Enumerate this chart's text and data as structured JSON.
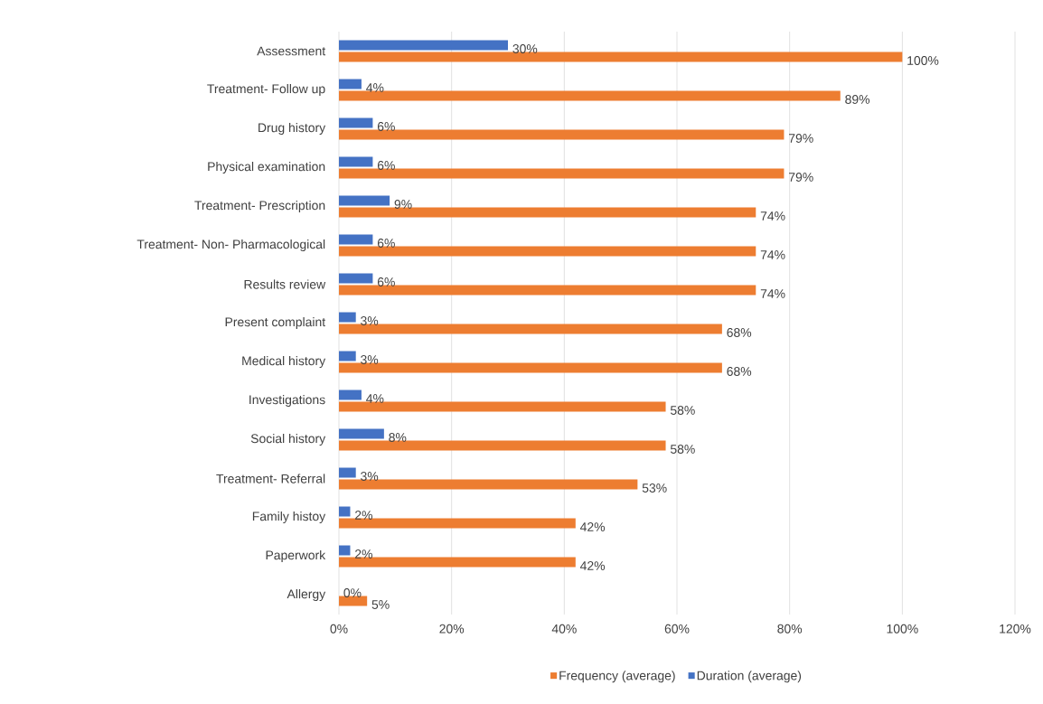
{
  "chart_data": {
    "type": "bar",
    "orientation": "horizontal",
    "categories": [
      "Assessment",
      "Treatment- Follow up",
      "Drug history",
      "Physical examination",
      "Treatment- Prescription",
      "Treatment- Non- Pharmacological",
      "Results review",
      "Present complaint",
      "Medical history",
      "Investigations",
      "Social history",
      "Treatment- Referral",
      "Family histoy",
      "Paperwork",
      "Allergy"
    ],
    "series": [
      {
        "name": "Frequency (average)",
        "color": "#ed7d31",
        "values": [
          100,
          89,
          79,
          79,
          74,
          74,
          74,
          68,
          68,
          58,
          58,
          53,
          42,
          42,
          5
        ],
        "value_labels": [
          "100%",
          "89%",
          "79%",
          "79%",
          "74%",
          "74%",
          "74%",
          "68%",
          "68%",
          "58%",
          "58%",
          "53%",
          "42%",
          "42%",
          "5%"
        ]
      },
      {
        "name": "Duration (average)",
        "color": "#4472c4",
        "values": [
          30,
          4,
          6,
          6,
          9,
          6,
          6,
          3,
          3,
          4,
          8,
          3,
          2,
          2,
          0
        ],
        "value_labels": [
          "30%",
          "4%",
          "6%",
          "6%",
          "9%",
          "6%",
          "6%",
          "3%",
          "3%",
          "4%",
          "8%",
          "3%",
          "2%",
          "2%",
          "0%"
        ]
      }
    ],
    "xlim": [
      0,
      120
    ],
    "xticks": [
      {
        "value": 0,
        "label": "0%"
      },
      {
        "value": 20,
        "label": "20%"
      },
      {
        "value": 40,
        "label": "40%"
      },
      {
        "value": 60,
        "label": "60%"
      },
      {
        "value": 80,
        "label": "80%"
      },
      {
        "value": 100,
        "label": "100%"
      },
      {
        "value": 120,
        "label": "120%"
      }
    ],
    "grid": "x",
    "legend": "bottom"
  }
}
